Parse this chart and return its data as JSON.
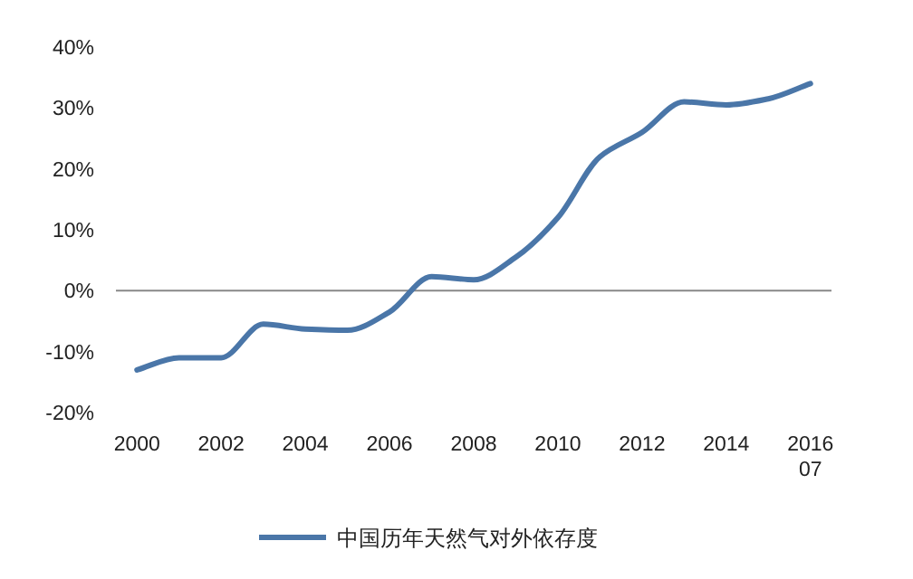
{
  "chart_data": {
    "type": "line",
    "categories": [
      "2000",
      null,
      "2002",
      null,
      "2004",
      null,
      "2006",
      null,
      "2008",
      null,
      "2010",
      null,
      "2012",
      null,
      "2014",
      null,
      "2016 07"
    ],
    "series": [
      {
        "name": "中国历年天然气对外依存度",
        "color": "#4a76a8",
        "values": [
          -13,
          -11,
          -11,
          -5.5,
          -6.3,
          -6.5,
          -3.5,
          2.3,
          1.8,
          5.5,
          12,
          22,
          26,
          31,
          30.5,
          31.5,
          34
        ]
      }
    ],
    "ylim": [
      -20,
      40
    ],
    "yticks": [
      {
        "value": -20,
        "label": "-20%"
      },
      {
        "value": -10,
        "label": "-10%"
      },
      {
        "value": 0,
        "label": "0%"
      },
      {
        "value": 10,
        "label": "10%"
      },
      {
        "value": 20,
        "label": "20%"
      },
      {
        "value": 30,
        "label": "30%"
      },
      {
        "value": 40,
        "label": "40%"
      }
    ],
    "legend": "bottom",
    "marker": "none",
    "line_style": "solid"
  }
}
